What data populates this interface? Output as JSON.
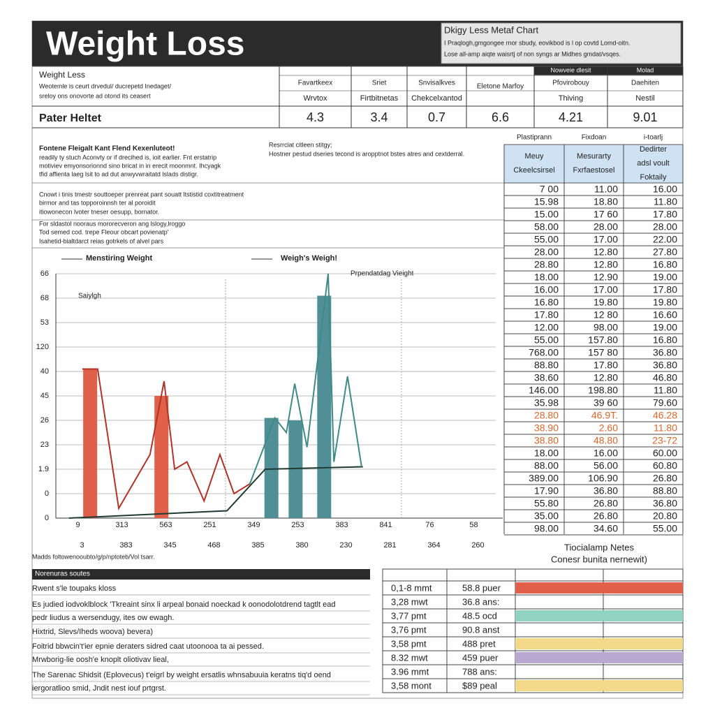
{
  "header": {
    "title": "Weight Loss",
    "box_title": "Dkigy Less Metaf Chart",
    "box_lines": [
      "I Praqlogh,gmgongee rnor sbudy, eovikbod is l op covtd Lomd-oitn.",
      "Lose all-amp aiqte waisrtj of non syngs ar Midhes gmdat/vsqes."
    ]
  },
  "summary": {
    "label": "Weight Less",
    "lines": [
      "Weotemle is ceurt drvedul/ ducrepetd Inedaget/",
      "sreloy ons onovorte ad otond its ceasert"
    ],
    "row_label": "Pater Heltet",
    "top_headers": [
      "Nowveie dlesit",
      "Molad"
    ],
    "headers": [
      "Favartkeex",
      "Sriet",
      "Snvisalkves",
      "Eletone Marfoy",
      "Pfovirobouy",
      "Daehiten"
    ],
    "subheaders": [
      "Wrvtox",
      "Firtbitnetas",
      "Chekcelxantod",
      "Thiving",
      "Nestil"
    ],
    "values": [
      4.3,
      3.4,
      0.7,
      6.6,
      4.21,
      9.01
    ]
  },
  "intro": {
    "heading": "Fontene Fleigalt Kant Flend Kexenluteot!",
    "lines": [
      "readily ty stuch Aconvty or if drecihed is, ioit earlier. Fnt erstatrip",
      "motiviev emyonsorionnd sino bricat in in erecit moonmnt. Ihcyagk",
      "tfid affienta laeg lsit to ad dut anwyvwraitatd lslads distigr."
    ],
    "side_heading": "Resrrciat citleen stitgy;",
    "side_lines": [
      "Hostner pestud dseries tecond is aropptnot bstes atres and cextderral."
    ],
    "notes": [
      "Cnowt i tinis tmestr souttoeper prenreat pant souatt ltstistid coxtitreatment",
      "birmor and tas topporoinnsh ter al poroidit",
      "itiowonecon lvoter tneser oesupp, bornator.",
      "For sldastol nooraus mororecveron ang lslogy,lroggo",
      "Tod semed cod. trepe Fleour obcart povienatp'",
      "Isahetid-bialtdarct reias gotrkels of alvel pars"
    ]
  },
  "chart_data": {
    "type": "line",
    "annotations": [
      "Prpendatdag Vieight",
      "Saiylgh"
    ],
    "ylim": [
      0,
      10
    ],
    "xlim": [
      0,
      10
    ],
    "yticks": [
      0,
      {
        "value": 1,
        "label": "0"
      },
      {
        "value": 2,
        "label": "1.9"
      },
      {
        "value": 3,
        "label": "23"
      },
      {
        "value": 4,
        "label": "26"
      },
      {
        "value": 5,
        "label": "45"
      },
      {
        "value": 6,
        "label": "40"
      },
      {
        "value": 7,
        "label": "120"
      },
      {
        "value": 8,
        "label": "53"
      },
      {
        "value": 9,
        "label": "68"
      },
      {
        "value": 10,
        "label": "66"
      }
    ],
    "categories": [
      "9",
      "313",
      "563",
      "251",
      "349",
      "253",
      "383",
      "841",
      "76",
      "58"
    ],
    "categories_2": [
      "3",
      "383",
      "345",
      "468",
      "385",
      "380",
      "230",
      "281",
      "364",
      "260"
    ],
    "series": [
      {
        "name": "Menstiring Weight",
        "color": "#b0332a",
        "x": [
          0.6,
          0.95,
          1.43,
          2.14,
          2.46,
          2.7,
          2.98,
          3.37,
          3.73,
          4.05,
          4.41
        ],
        "values": [
          6.1,
          6.1,
          0.4,
          2.6,
          5.6,
          2.0,
          2.3,
          0.7,
          2.6,
          1.0,
          1.4
        ]
      },
      {
        "name": "Weigh's Weigh!",
        "color": "#1f3a32",
        "x": [
          0.3,
          3.89,
          4.76,
          6.98
        ],
        "values": [
          0,
          0.3,
          2.0,
          2.1
        ]
      },
      {
        "color": "#3f8a86",
        "x": [
          4.41,
          4.98,
          5.24,
          5.43,
          5.71,
          6.19,
          6.32,
          6.63,
          6.95
        ],
        "values": [
          1.4,
          4.1,
          3.5,
          5.5,
          2.9,
          10,
          2.3,
          5.8,
          2.1
        ]
      }
    ],
    "bars": [
      {
        "color": "#e0604a",
        "x": [
          0.78,
          2.4
        ],
        "values": [
          6.1,
          5.0
        ]
      },
      {
        "color": "#4f8f95",
        "x": [
          4.9,
          5.45,
          6.1
        ],
        "values": [
          4.1,
          4.0,
          9.1
        ]
      }
    ]
  },
  "caption": "Madds foltowenooubto/g/p/nptoteb/Vol tsarr.",
  "data_table": {
    "headers": [
      "Plastiprann",
      "Fixdoan",
      "i-toarlj"
    ],
    "subheaders": [
      [
        "Meuy",
        "Ckeelcsirsel"
      ],
      [
        "Mesurarty",
        "Fxrfaestosel"
      ],
      [
        "Dedirter",
        "adsl voult",
        "Foktaily"
      ]
    ],
    "rows": [
      [
        "7 00",
        "11.00",
        "16.00"
      ],
      [
        "15.98",
        "18.80",
        "11.80"
      ],
      [
        "15.00",
        "17 60",
        "17.80"
      ],
      [
        "58.00",
        "28.00",
        "28.00"
      ],
      [
        "55.00",
        "17.00",
        "22.00"
      ],
      [
        "28.00",
        "12.80",
        "27.80"
      ],
      [
        "28.80",
        "12.80",
        "16.80"
      ],
      [
        "18.00",
        "12.90",
        "19.00"
      ],
      [
        "16.00",
        "17.00",
        "17.80"
      ],
      [
        "16.80",
        "19.80",
        "19.80"
      ],
      [
        "17.80",
        "12 80",
        "16.60"
      ],
      [
        "12.00",
        "98.00",
        "19.00"
      ],
      [
        "55.00",
        "157.80",
        "16.80"
      ],
      [
        "768.00",
        "157 80",
        "36.80"
      ],
      [
        "88.80",
        "17.80",
        "36.80"
      ],
      [
        "38.60",
        "12.80",
        "46.80"
      ],
      [
        "146.00",
        "198.80",
        "11.80"
      ],
      [
        "35.98",
        "39 60",
        "79.60"
      ],
      [
        "28.80",
        "46.9T.",
        "46.28"
      ],
      [
        "38.90",
        "2.60",
        "11.80"
      ],
      [
        "38.80",
        "48.80",
        "23-72"
      ],
      [
        "18.00",
        "16.00",
        "60.00"
      ],
      [
        "88.00",
        "56.00",
        "60.80"
      ],
      [
        "389.00",
        "106.90",
        "26.80"
      ],
      [
        "17.90",
        "36.80",
        "88.80"
      ],
      [
        "55.80",
        "26.80",
        "36.80"
      ],
      [
        "35.00",
        "26.80",
        "20.80"
      ],
      [
        "98.00",
        "34.60",
        "55.00"
      ]
    ],
    "highlight_rows": [
      18,
      19,
      20
    ],
    "highlight_color": "#d9662c"
  },
  "notes_section": {
    "heading": "Norenuras soutes",
    "lines": [
      "Rwent s'le toupaks kloss",
      "Es judied iodvoklblock 'Tkreaint sinx li arpeal bonaid noeckad k oonodolotdrend tagtlt ead",
      "pedr liudus a wersendugy, ites ow ewagh.",
      "Hixtrid, Slevs/Iheds woova) bevera)",
      "Foitrid bbwcin't'ier epnie deraters sidred caat utoonooa ta ai pessed.",
      "Mrwborig-lie oosh'e knoplt oliotivav lieal,",
      "The Sarenac Shidsit (Eplovecus) t'eigrl by weight ersatlis whnsabuuia keratns tiq'd oend",
      "iergoratlioo smid, Jndit nest iouf prtgrst."
    ]
  },
  "legend_table": {
    "title": "Tiocialamp Netes",
    "subtitle": "Conesr bunita nernewit)",
    "rows": [
      {
        "a": "0,1-8 mmt",
        "b": "58.8 puer",
        "color": "#e0604a"
      },
      {
        "a": "3,28 mwt",
        "b": "36.8 ans:"
      },
      {
        "a": "3,77 pmt",
        "b": "48.5 ocd",
        "color": "#8fd3c0"
      },
      {
        "a": "3,76 pmt",
        "b": "90.8 anst"
      },
      {
        "a": "3,58 pmt",
        "b": "488 pret",
        "color": "#f2d98a"
      },
      {
        "a": "8.32 mwt",
        "b": "459 puer",
        "color": "#b9a8d0"
      },
      {
        "a": "3.96 mmt",
        "b": "788 ans:"
      },
      {
        "a": "3,58 mont",
        "b": "$89 peal",
        "color": "#f2d98a"
      }
    ]
  }
}
